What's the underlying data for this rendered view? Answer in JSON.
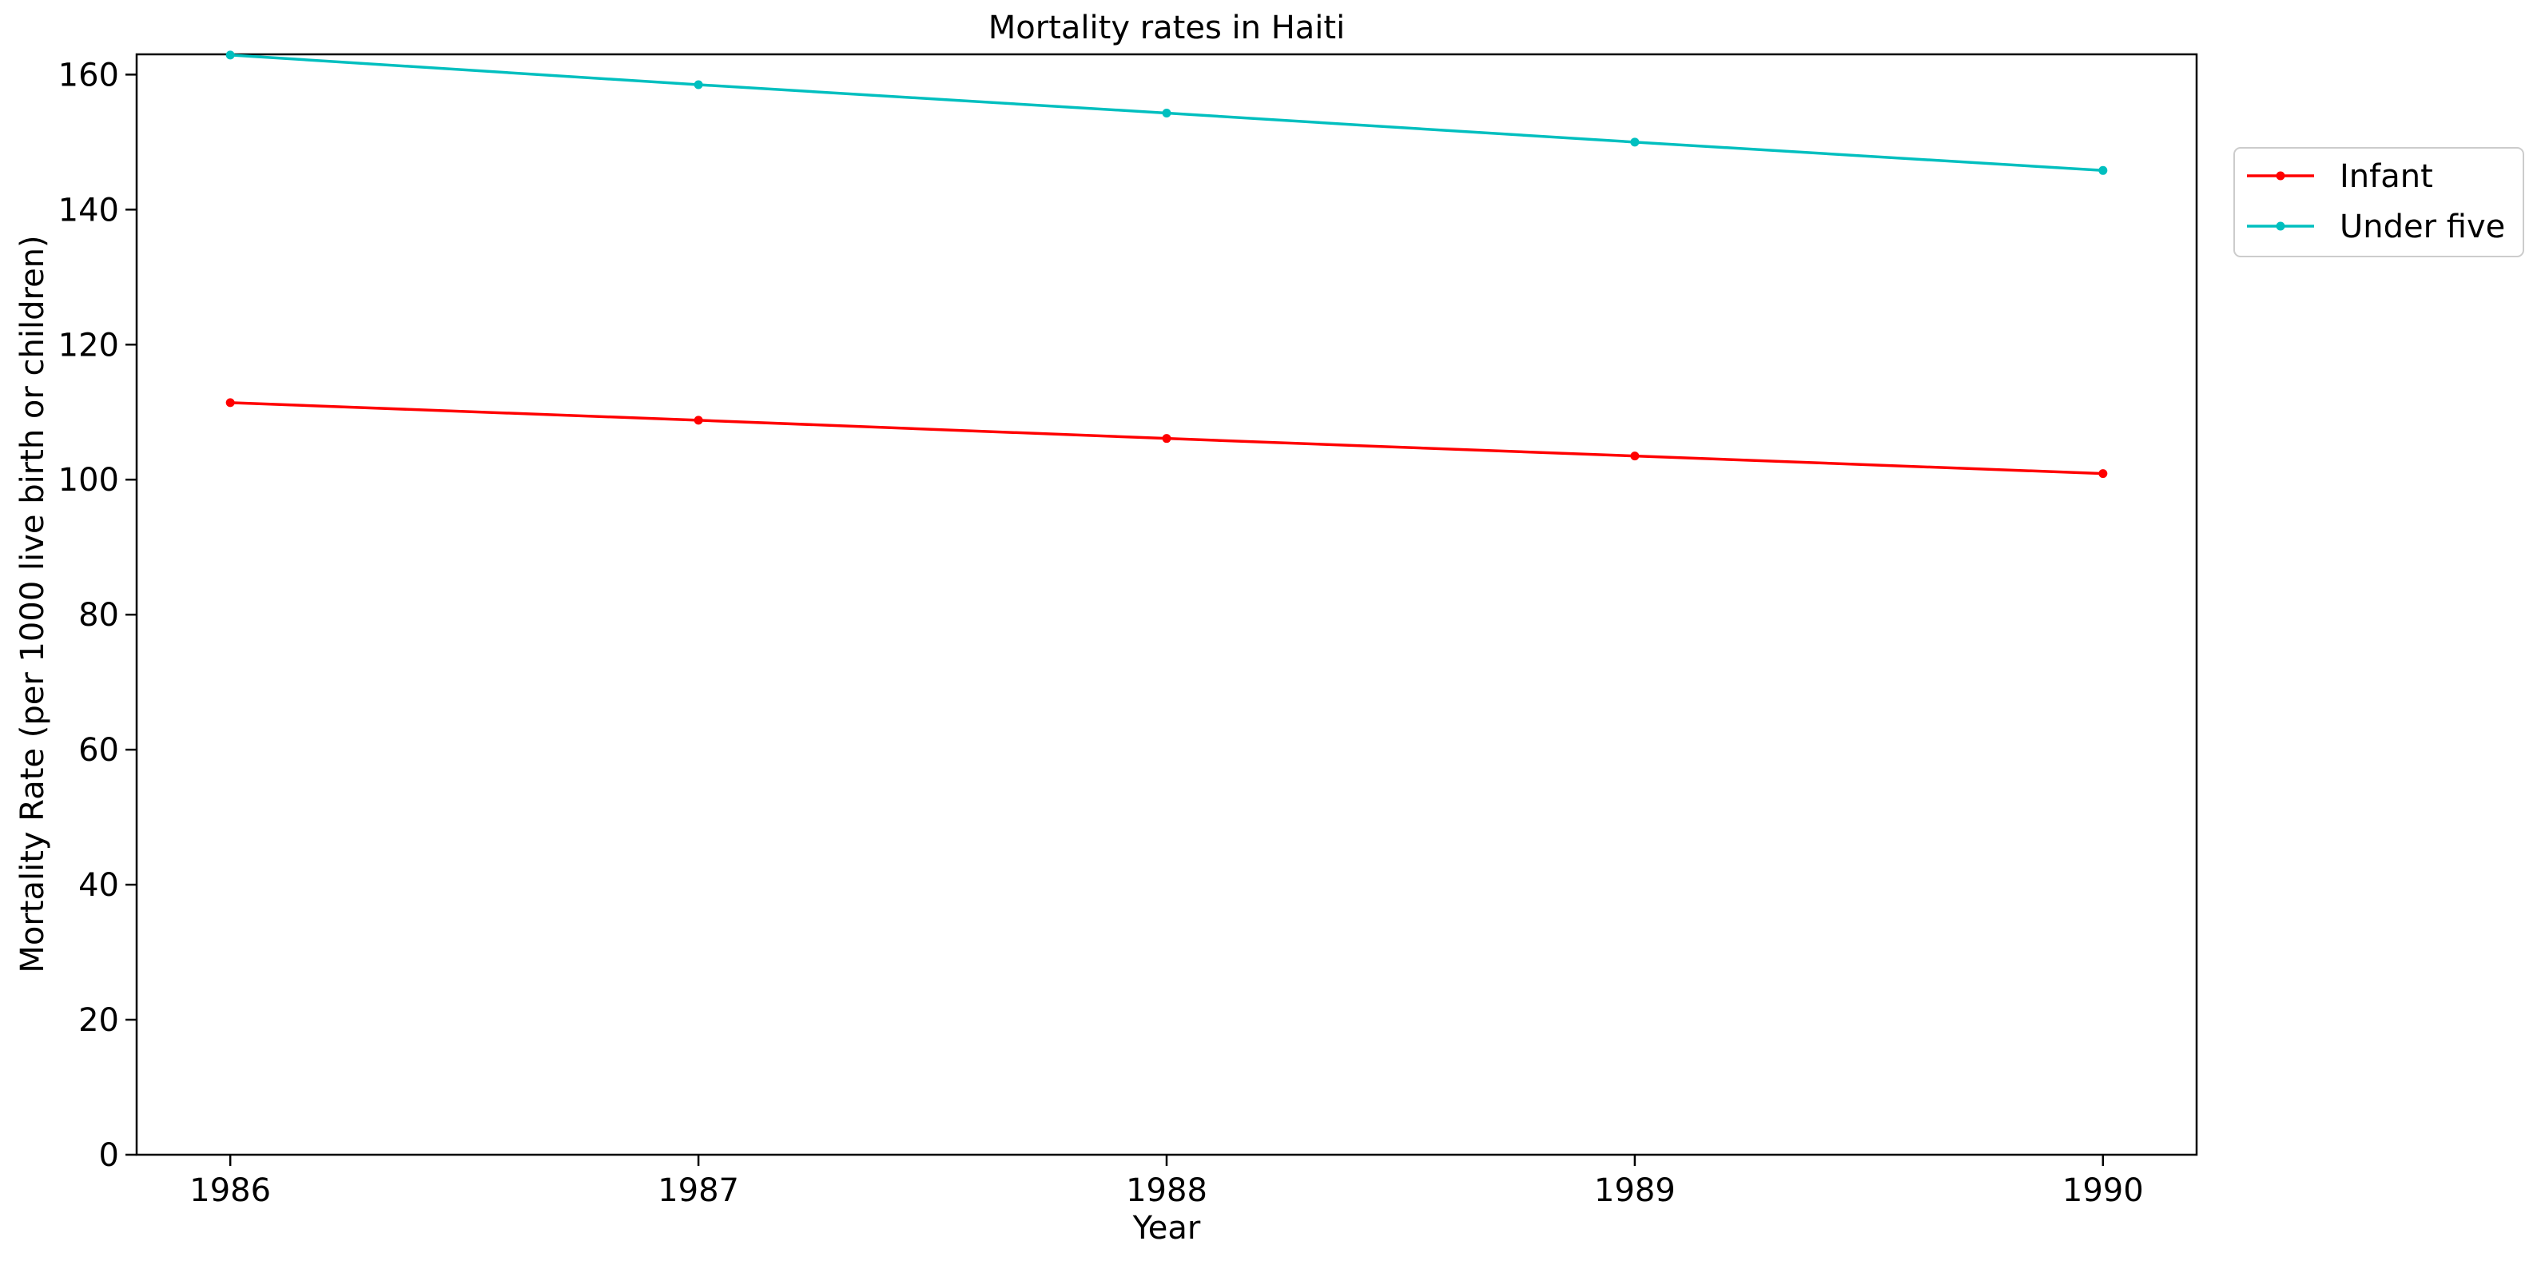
{
  "chart_data": {
    "type": "line",
    "title": "Mortality rates in Haiti",
    "xlabel": "Year",
    "ylabel": "Mortality Rate (per 1000 live birth or children)",
    "x": [
      "1986",
      "1987",
      "1988",
      "1989",
      "1990"
    ],
    "xlim": [
      1985.8,
      1990.2
    ],
    "ylim": [
      0,
      163
    ],
    "yticks": [
      0,
      20,
      40,
      60,
      80,
      100,
      120,
      140,
      160
    ],
    "grid": false,
    "legend_position": "upper right, outside plot area",
    "series": [
      {
        "name": "Infant",
        "color": "#ff0000",
        "marker": "dot",
        "values": [
          111.4,
          108.8,
          106.1,
          103.5,
          100.9
        ]
      },
      {
        "name": "Under five",
        "color": "#00bfbf",
        "marker": "dot",
        "values": [
          162.9,
          158.5,
          154.3,
          150.0,
          145.8
        ]
      }
    ]
  }
}
